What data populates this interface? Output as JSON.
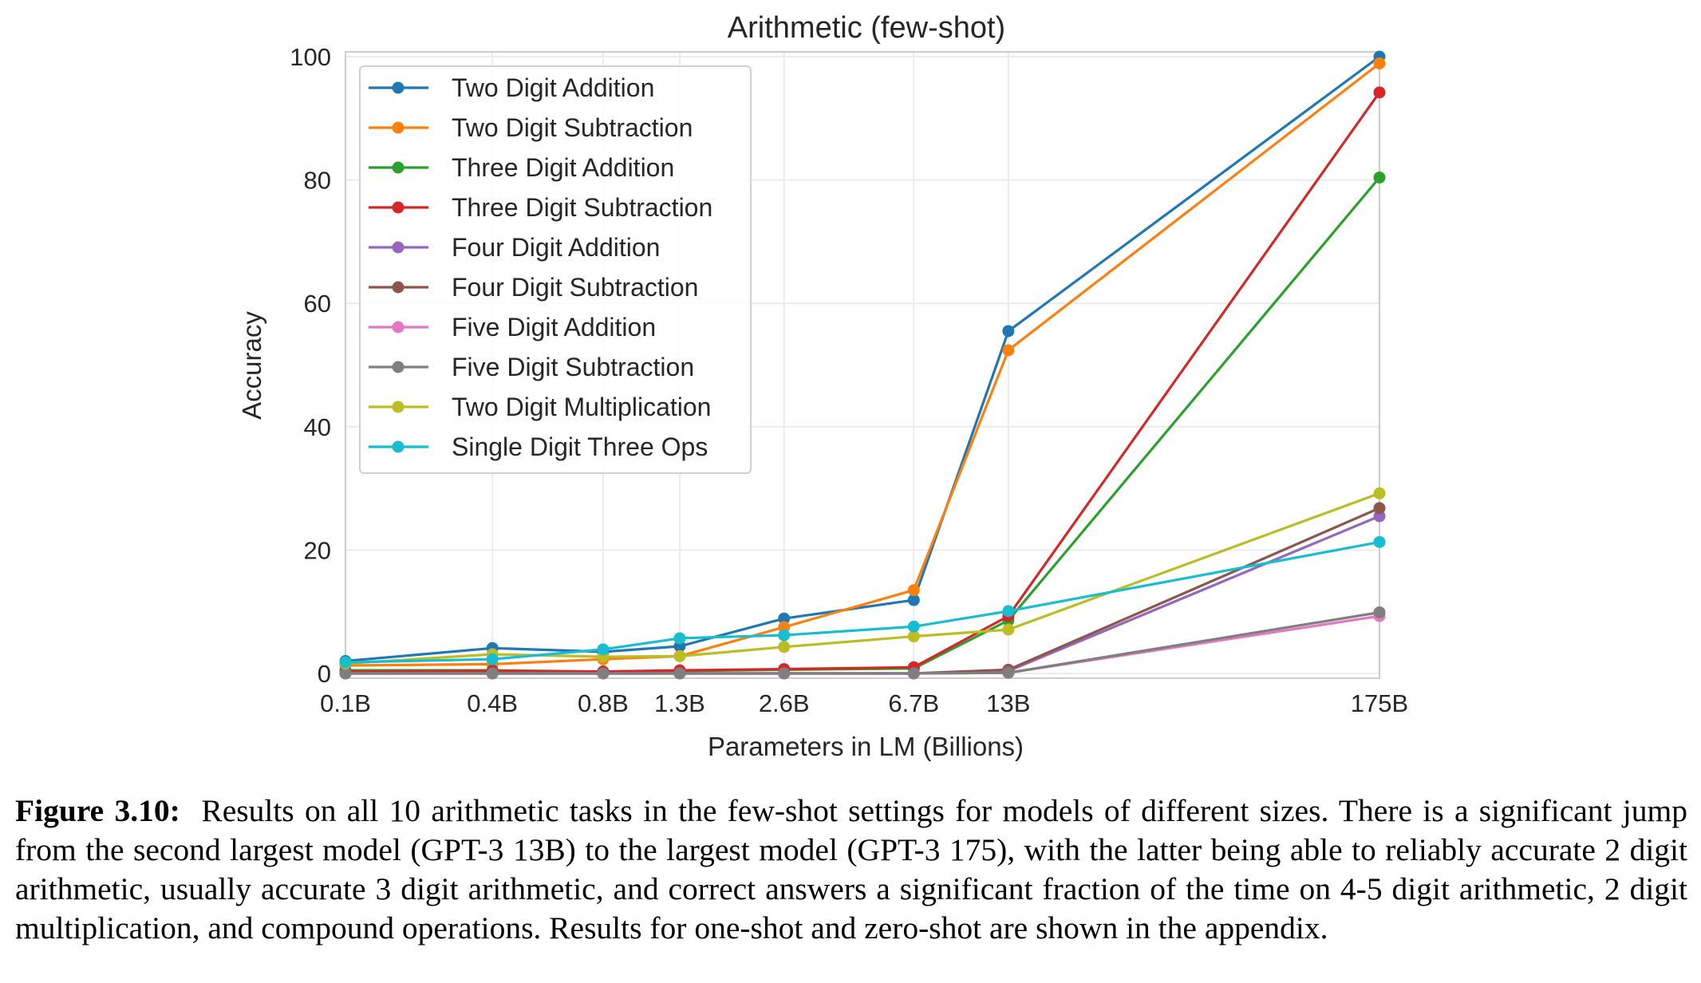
{
  "chart_data": {
    "type": "line",
    "title": "Arithmetic (few-shot)",
    "xlabel": "Parameters in LM (Billions)",
    "ylabel": "Accuracy",
    "x_scale": "log",
    "x": [
      0.125,
      0.35,
      0.76,
      1.3,
      2.7,
      6.7,
      13,
      175
    ],
    "x_tick_labels": [
      "0.1B",
      "0.4B",
      "0.8B",
      "1.3B",
      "2.6B",
      "6.7B",
      "13B",
      "175B"
    ],
    "yticks": [
      0,
      20,
      40,
      60,
      80,
      100
    ],
    "ylim": [
      -1,
      100.5
    ],
    "grid": true,
    "legend_position": "upper-left",
    "series": [
      {
        "name": "Two Digit Addition",
        "color": "#1f77b4",
        "values": [
          2.0,
          4.1,
          3.5,
          4.4,
          8.9,
          11.9,
          55.5,
          100.0
        ]
      },
      {
        "name": "Two Digit Subtraction",
        "color": "#ff7f0e",
        "values": [
          1.3,
          1.5,
          2.3,
          2.8,
          7.5,
          13.5,
          52.4,
          98.9
        ]
      },
      {
        "name": "Three Digit Addition",
        "color": "#2ca02c",
        "values": [
          0.5,
          0.5,
          0.3,
          0.4,
          0.6,
          0.8,
          8.6,
          80.4
        ]
      },
      {
        "name": "Three Digit Subtraction",
        "color": "#d62728",
        "values": [
          0.3,
          0.4,
          0.3,
          0.5,
          0.7,
          1.0,
          9.3,
          94.2
        ]
      },
      {
        "name": "Four Digit Addition",
        "color": "#9467bd",
        "values": [
          0.0,
          0.0,
          0.0,
          0.0,
          0.0,
          0.0,
          0.4,
          25.5
        ]
      },
      {
        "name": "Four Digit Subtraction",
        "color": "#8c564b",
        "values": [
          0.0,
          0.0,
          0.0,
          0.0,
          0.0,
          0.0,
          0.6,
          26.8
        ]
      },
      {
        "name": "Five Digit Addition",
        "color": "#e377c2",
        "values": [
          0.0,
          0.0,
          0.0,
          0.0,
          0.0,
          0.0,
          0.1,
          9.3
        ]
      },
      {
        "name": "Five Digit Subtraction",
        "color": "#7f7f7f",
        "values": [
          0.0,
          0.0,
          0.0,
          0.0,
          0.0,
          0.0,
          0.1,
          9.9
        ]
      },
      {
        "name": "Two Digit Multiplication",
        "color": "#bcbd22",
        "values": [
          1.6,
          3.1,
          2.7,
          2.8,
          4.3,
          6.0,
          7.1,
          29.2
        ]
      },
      {
        "name": "Single Digit Three Ops",
        "color": "#17becf",
        "values": [
          1.8,
          2.3,
          3.9,
          5.7,
          6.2,
          7.6,
          10.1,
          21.3
        ]
      }
    ]
  },
  "caption": {
    "label": "Figure 3.10:",
    "text": "Results on all 10 arithmetic tasks in the few-shot settings for models of different sizes. There is a significant jump from the second largest model (GPT-3 13B) to the largest model (GPT-3 175), with the latter being able to reliably accurate 2 digit arithmetic, usually accurate 3 digit arithmetic, and correct answers a significant fraction of the time on 4-5 digit arithmetic, 2 digit multiplication, and compound operations. Results for one-shot and zero-shot are shown in the appendix."
  }
}
